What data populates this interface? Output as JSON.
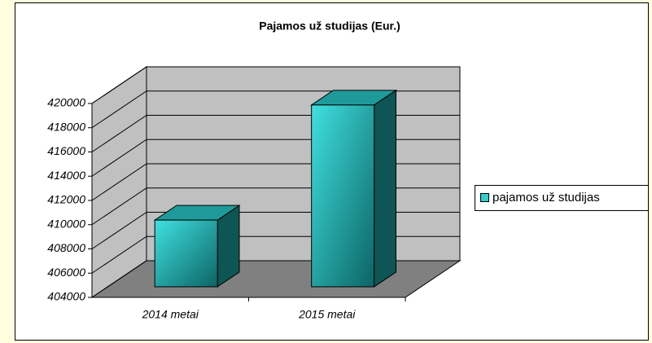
{
  "chart_data": {
    "type": "bar",
    "title": "Pajamos už studijas (Eur.)",
    "categories": [
      "2014 metai",
      "2015 metai"
    ],
    "series": [
      {
        "name": "pajamos už studijas",
        "color": "#33cccc",
        "values": [
          409500,
          419000
        ]
      }
    ],
    "ylim": [
      404000,
      420000
    ],
    "yticks": [
      404000,
      406000,
      408000,
      410000,
      412000,
      414000,
      416000,
      418000,
      420000
    ],
    "grid": true,
    "legend": "right"
  }
}
